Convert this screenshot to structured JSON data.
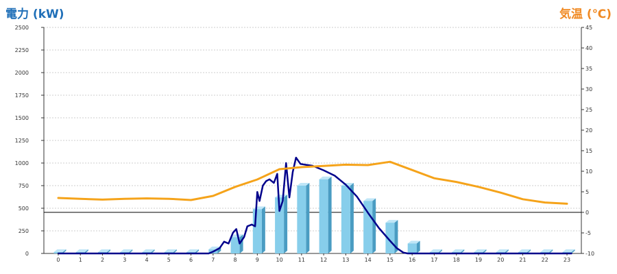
{
  "chart_data": {
    "type": "bar+line",
    "left_axis_title": "電力 (kW)",
    "right_axis_title": "気温 (℃)",
    "x_ticks": [
      "0",
      "1",
      "2",
      "3",
      "4",
      "5",
      "6",
      "7",
      "8",
      "9",
      "10",
      "11",
      "12",
      "13",
      "14",
      "15",
      "16",
      "17",
      "18",
      "19",
      "20",
      "21",
      "22",
      "23"
    ],
    "y_left_ticks": [
      "0",
      "250",
      "500",
      "750",
      "1000",
      "1250",
      "1500",
      "1750",
      "2000",
      "2250",
      "2500"
    ],
    "y_left_lim": [
      0,
      2500
    ],
    "y_right_ticks": [
      "-10",
      "-5",
      "0",
      "5",
      "10",
      "15",
      "20",
      "25",
      "30",
      "35",
      "40",
      "45"
    ],
    "y_right_lim": [
      -10,
      45
    ],
    "reference_line_right": 0,
    "grid": true,
    "colors": {
      "bar_face": "#87ceeb",
      "bar_top": "#bfe6f7",
      "bar_side": "#4a9cc2",
      "power_line": "#00008b",
      "temp_line": "#f5a31a",
      "grid": "#cccccc",
      "left_title": "#1f6fb8",
      "right_title": "#f08a24"
    },
    "series": [
      {
        "type": "bar",
        "axis": "left",
        "values": [
          15,
          15,
          15,
          15,
          15,
          15,
          15,
          45,
          180,
          490,
          620,
          750,
          820,
          750,
          580,
          340,
          110,
          15,
          15,
          15,
          15,
          15,
          15,
          15
        ]
      },
      {
        "type": "line",
        "axis": "left",
        "color": "#00008b",
        "points": [
          [
            0,
            0
          ],
          [
            6.8,
            0
          ],
          [
            7,
            20
          ],
          [
            7.3,
            60
          ],
          [
            7.5,
            130
          ],
          [
            7.7,
            110
          ],
          [
            7.9,
            230
          ],
          [
            8.05,
            270
          ],
          [
            8.2,
            110
          ],
          [
            8.4,
            180
          ],
          [
            8.55,
            300
          ],
          [
            8.75,
            320
          ],
          [
            8.9,
            300
          ],
          [
            9.0,
            680
          ],
          [
            9.1,
            580
          ],
          [
            9.25,
            750
          ],
          [
            9.4,
            800
          ],
          [
            9.55,
            820
          ],
          [
            9.75,
            780
          ],
          [
            9.9,
            880
          ],
          [
            10.0,
            470
          ],
          [
            10.15,
            580
          ],
          [
            10.3,
            1000
          ],
          [
            10.45,
            620
          ],
          [
            10.6,
            900
          ],
          [
            10.75,
            1060
          ],
          [
            10.95,
            990
          ],
          [
            11.2,
            980
          ],
          [
            11.5,
            970
          ],
          [
            12,
            920
          ],
          [
            12.5,
            860
          ],
          [
            13,
            760
          ],
          [
            13.5,
            630
          ],
          [
            14,
            450
          ],
          [
            14.5,
            280
          ],
          [
            15,
            140
          ],
          [
            15.3,
            60
          ],
          [
            15.6,
            10
          ],
          [
            15.8,
            0
          ],
          [
            23.2,
            0
          ]
        ]
      },
      {
        "type": "line",
        "axis": "right",
        "color": "#f5a31a",
        "points": [
          [
            0,
            3.5
          ],
          [
            1,
            3.3
          ],
          [
            2,
            3.1
          ],
          [
            3,
            3.3
          ],
          [
            4,
            3.4
          ],
          [
            5,
            3.3
          ],
          [
            6,
            3.0
          ],
          [
            7,
            4.0
          ],
          [
            8,
            6.2
          ],
          [
            9,
            8.0
          ],
          [
            10,
            10.5
          ],
          [
            11,
            11.0
          ],
          [
            12,
            11.3
          ],
          [
            13,
            11.6
          ],
          [
            14,
            11.5
          ],
          [
            15,
            12.3
          ],
          [
            16,
            10.3
          ],
          [
            17,
            8.3
          ],
          [
            18,
            7.4
          ],
          [
            19,
            6.2
          ],
          [
            20,
            4.8
          ],
          [
            21,
            3.2
          ],
          [
            22,
            2.4
          ],
          [
            23,
            2.1
          ]
        ]
      }
    ]
  }
}
